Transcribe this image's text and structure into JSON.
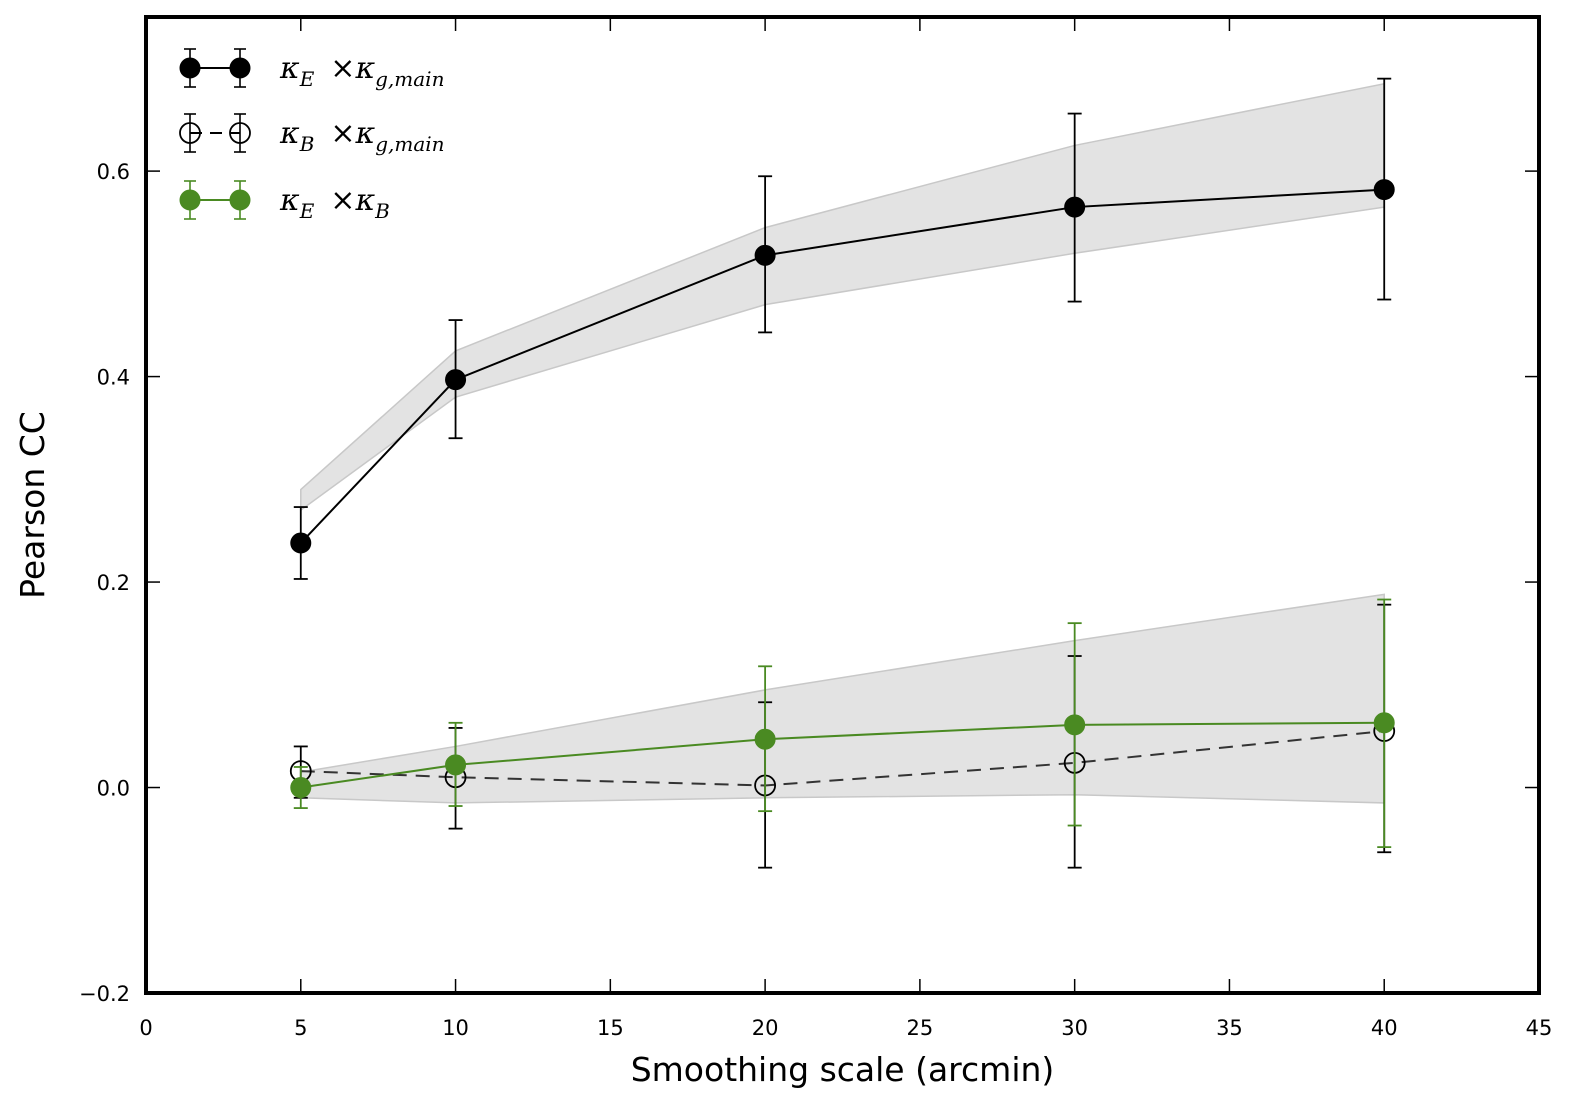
{
  "chart_data": {
    "type": "line",
    "xlabel": "Smoothing scale (arcmin)",
    "ylabel": "Pearson CC",
    "xlim": [
      0,
      45
    ],
    "ylim": [
      -0.2,
      0.75
    ],
    "xticks": [
      0,
      5,
      10,
      15,
      20,
      25,
      30,
      35,
      40,
      45
    ],
    "yticks": [
      -0.2,
      0.0,
      0.2,
      0.4,
      0.6
    ],
    "xtick_labels": [
      "0",
      "5",
      "10",
      "15",
      "20",
      "25",
      "30",
      "35",
      "40",
      "45"
    ],
    "ytick_labels": [
      "−0.2",
      "0.0",
      "0.2",
      "0.4",
      "0.6"
    ],
    "grid": false,
    "legend_position": "top-left",
    "bands": [
      {
        "x": [
          5,
          10,
          20,
          30,
          40
        ],
        "lower": [
          0.27,
          0.38,
          0.47,
          0.52,
          0.565
        ],
        "upper": [
          0.29,
          0.425,
          0.545,
          0.625,
          0.685
        ]
      },
      {
        "x": [
          5,
          10,
          20,
          30,
          40
        ],
        "lower": [
          -0.01,
          -0.015,
          -0.01,
          -0.007,
          -0.015
        ],
        "upper": [
          0.015,
          0.04,
          0.095,
          0.143,
          0.188
        ]
      }
    ],
    "series": [
      {
        "name_main": "κE ×κg,main",
        "x": [
          5,
          10,
          20,
          30,
          40
        ],
        "y": [
          0.238,
          0.397,
          0.518,
          0.565,
          0.582
        ],
        "yerr_low": [
          0.203,
          0.34,
          0.443,
          0.473,
          0.475
        ],
        "yerr_high": [
          0.273,
          0.455,
          0.595,
          0.656,
          0.69
        ],
        "color": "#000000",
        "marker": "filled",
        "linestyle": "solid"
      },
      {
        "name_main": "κB ×κg,main",
        "x": [
          5,
          10,
          20,
          30,
          40
        ],
        "y": [
          0.016,
          0.01,
          0.002,
          0.024,
          0.055
        ],
        "yerr_low": [
          -0.01,
          -0.04,
          -0.078,
          -0.078,
          -0.063
        ],
        "yerr_high": [
          0.04,
          0.058,
          0.083,
          0.128,
          0.178
        ],
        "color": "#000000",
        "marker": "open",
        "linestyle": "dashed"
      },
      {
        "name_main": "κE ×κB",
        "x": [
          5,
          10,
          20,
          30,
          40
        ],
        "y": [
          0.0,
          0.022,
          0.047,
          0.061,
          0.063
        ],
        "yerr_low": [
          -0.02,
          -0.018,
          -0.023,
          -0.037,
          -0.058
        ],
        "yerr_high": [
          0.02,
          0.063,
          0.118,
          0.16,
          0.183
        ],
        "color": "#4a8a22",
        "marker": "filled",
        "linestyle": "solid"
      }
    ],
    "legend": [
      {
        "base": "κ",
        "sub1": "E",
        "times": "×κ",
        "sub2": "g,main"
      },
      {
        "base": "κ",
        "sub1": "B",
        "times": "×κ",
        "sub2": "g,main"
      },
      {
        "base": "κ",
        "sub1": "E",
        "times": "×κ",
        "sub2": "B"
      }
    ]
  }
}
